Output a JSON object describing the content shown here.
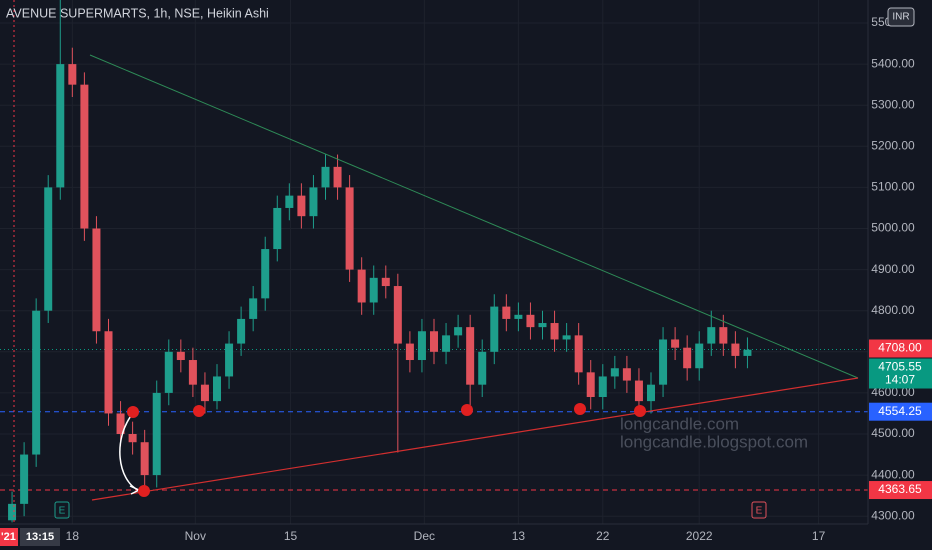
{
  "chart_data": {
    "type": "candlestick",
    "title": "AVENUE SUPERMARTS, 1h, NSE, Heikin Ashi",
    "currency": "INR",
    "watermark": [
      "longcandle.com",
      "longcandle.blogspot.com"
    ],
    "cursor_time": [
      "'21",
      "13:15"
    ],
    "event_icons": [
      "E",
      "E"
    ],
    "up_color": "#1e9e8c",
    "down_color": "#e0525c",
    "grid": true,
    "xlim": [
      0,
      72
    ],
    "ylim": [
      4281,
      5556
    ],
    "xticks": [
      {
        "value": 6,
        "label": "18"
      },
      {
        "value": 16.2,
        "label": "Nov"
      },
      {
        "value": 24.1,
        "label": "15"
      },
      {
        "value": 35.2,
        "label": "Dec"
      },
      {
        "value": 43,
        "label": "13"
      },
      {
        "value": 50,
        "label": "22"
      },
      {
        "value": 58,
        "label": "2022"
      },
      {
        "value": 67.9,
        "label": "17"
      }
    ],
    "yticks": [
      {
        "value": 4300,
        "label": "4300.00"
      },
      {
        "value": 4400,
        "label": "4400.00"
      },
      {
        "value": 4500,
        "label": "4500.00"
      },
      {
        "value": 4600,
        "label": "4600.00"
      },
      {
        "value": 4700,
        "label": "4700.00"
      },
      {
        "value": 4800,
        "label": "4800.00"
      },
      {
        "value": 4900,
        "label": "4900.00"
      },
      {
        "value": 5000,
        "label": "5000.00"
      },
      {
        "value": 5100,
        "label": "5100.00"
      },
      {
        "value": 5200,
        "label": "5200.00"
      },
      {
        "value": 5300,
        "label": "5300.00"
      },
      {
        "value": 5400,
        "label": "5400.00"
      },
      {
        "value": 5500,
        "label": "5500.00"
      }
    ],
    "x": [
      1,
      2,
      3,
      4,
      5,
      6,
      7,
      8,
      9,
      10,
      11,
      12,
      13,
      14,
      15,
      16,
      17,
      18,
      19,
      20,
      21,
      22,
      23,
      24,
      25,
      26,
      27,
      28,
      29,
      30,
      31,
      32,
      33,
      34,
      35,
      36,
      37,
      38,
      39,
      40,
      41,
      42,
      43,
      44,
      45,
      46,
      47,
      48,
      49,
      50,
      51,
      52,
      53,
      54,
      55,
      56,
      57,
      58,
      59,
      60,
      61,
      62
    ],
    "open": [
      4290,
      4330,
      4450,
      4800,
      5100,
      5400,
      5350,
      5000,
      4750,
      4550,
      4500,
      4480,
      4400,
      4600,
      4700,
      4680,
      4620,
      4580,
      4640,
      4720,
      4780,
      4830,
      4950,
      5050,
      5080,
      5030,
      5100,
      5150,
      5100,
      4900,
      4820,
      4880,
      4860,
      4720,
      4680,
      4750,
      4700,
      4740,
      4760,
      4620,
      4700,
      4810,
      4780,
      4790,
      4760,
      4770,
      4730,
      4740,
      4650,
      4590,
      4640,
      4660,
      4630,
      4580,
      4620,
      4730,
      4710,
      4660,
      4720,
      4760,
      4720,
      4690
    ],
    "high": [
      4360,
      4480,
      4830,
      5130,
      5560,
      5440,
      5380,
      5030,
      4780,
      4580,
      4530,
      4510,
      4630,
      4730,
      4730,
      4710,
      4650,
      4670,
      4750,
      4810,
      4860,
      4980,
      5080,
      5110,
      5110,
      5130,
      5180,
      5180,
      5130,
      4930,
      4910,
      4910,
      4890,
      4750,
      4780,
      4780,
      4770,
      4790,
      4790,
      4730,
      4840,
      4840,
      4820,
      4820,
      4800,
      4800,
      4770,
      4770,
      4680,
      4670,
      4690,
      4690,
      4660,
      4650,
      4760,
      4760,
      4740,
      4750,
      4800,
      4790,
      4750,
      4735
    ],
    "low": [
      4285,
      4300,
      4420,
      4770,
      5070,
      5320,
      4970,
      4720,
      4520,
      4470,
      4450,
      4364,
      4370,
      4570,
      4650,
      4590,
      4550,
      4560,
      4610,
      4690,
      4750,
      4800,
      4920,
      5020,
      5000,
      5000,
      5070,
      5070,
      4870,
      4790,
      4790,
      4830,
      4455,
      4650,
      4650,
      4670,
      4670,
      4710,
      4570,
      4590,
      4670,
      4750,
      4750,
      4730,
      4730,
      4700,
      4700,
      4620,
      4560,
      4560,
      4610,
      4600,
      4550,
      4550,
      4590,
      4680,
      4630,
      4630,
      4690,
      4690,
      4660,
      4660
    ],
    "close": [
      4330,
      4450,
      4800,
      5100,
      5400,
      5350,
      5000,
      4750,
      4550,
      4500,
      4480,
      4400,
      4600,
      4700,
      4680,
      4620,
      4580,
      4640,
      4720,
      4780,
      4830,
      4950,
      5050,
      5080,
      5030,
      5100,
      5150,
      5100,
      4900,
      4820,
      4880,
      4860,
      4720,
      4680,
      4750,
      4700,
      4740,
      4760,
      4620,
      4700,
      4810,
      4780,
      4790,
      4760,
      4770,
      4730,
      4740,
      4650,
      4590,
      4640,
      4660,
      4630,
      4580,
      4620,
      4730,
      4710,
      4660,
      4720,
      4760,
      4720,
      4690,
      4705
    ],
    "price_labels": [
      {
        "value": 4708,
        "label": "4708.00",
        "color": "#f23645"
      },
      {
        "value": 4705.55,
        "label": "4705.55",
        "sub": "14:07",
        "color": "#089981",
        "line": "dotted"
      },
      {
        "value": 4554.25,
        "label": "4554.25",
        "color": "#2962ff",
        "line": "dashed"
      },
      {
        "value": 4363.65,
        "label": "4363.65",
        "color": "#f23645",
        "line": "dashed"
      }
    ]
  }
}
